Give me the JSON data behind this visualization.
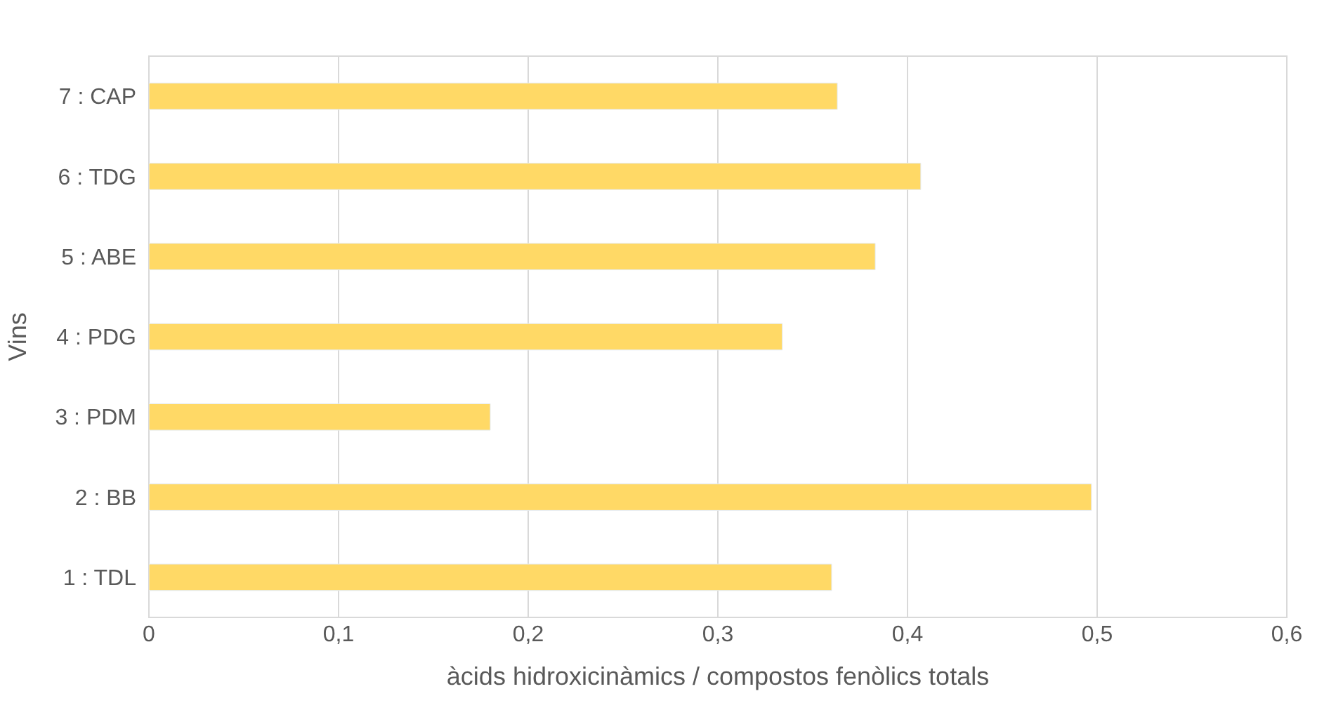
{
  "chart_data": {
    "type": "bar",
    "orientation": "horizontal",
    "xlabel": "àcids hidroxicinàmics / compostos fenòlics totals",
    "ylabel": "Vins",
    "categories": [
      "7 : CAP",
      "6 : TDG",
      "5 : ABE",
      "4 : PDG",
      "3 : PDM",
      "2 : BB",
      "1 : TDL"
    ],
    "values": [
      0.363,
      0.407,
      0.383,
      0.334,
      0.18,
      0.497,
      0.36
    ],
    "color": "#ffd966",
    "xlim": [
      0,
      0.6
    ],
    "xticks": [
      {
        "value": 0,
        "label": "0"
      },
      {
        "value": 0.1,
        "label": "0,1"
      },
      {
        "value": 0.2,
        "label": "0,2"
      },
      {
        "value": 0.3,
        "label": "0,3"
      },
      {
        "value": 0.4,
        "label": "0,4"
      },
      {
        "value": 0.5,
        "label": "0,5"
      },
      {
        "value": 0.6,
        "label": "0,6"
      }
    ],
    "grid": "x"
  }
}
